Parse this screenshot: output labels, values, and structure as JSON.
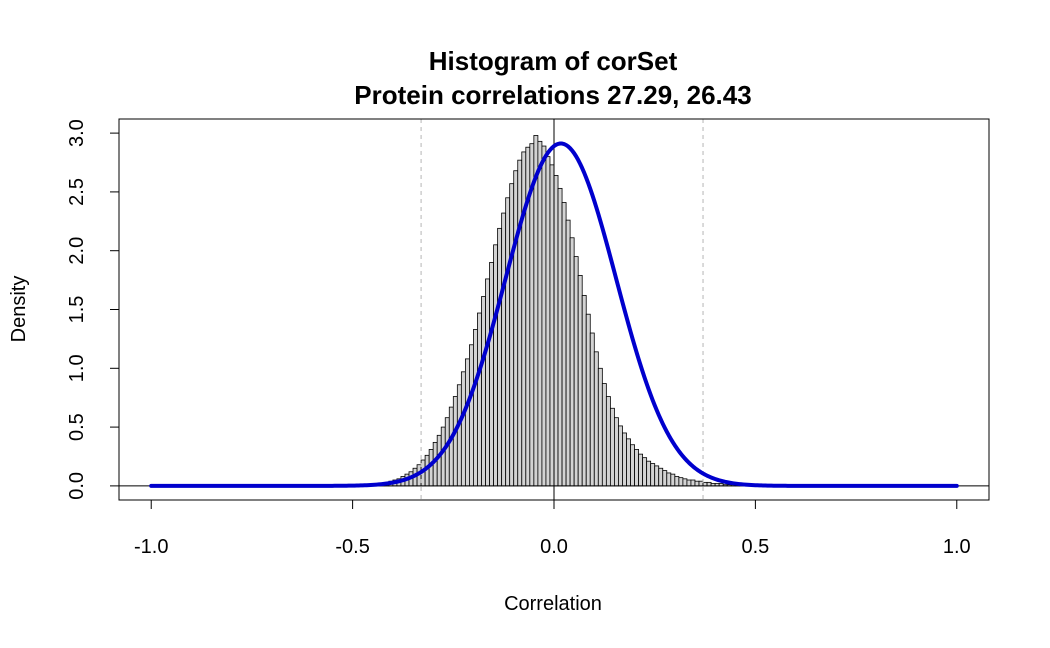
{
  "chart_data": {
    "type": "bar",
    "title": "Histogram of corSet",
    "subtitle": "Protein correlations 27.29, 26.43",
    "xlabel": "Correlation",
    "ylabel": "Density",
    "xlim": [
      -1.08,
      1.08
    ],
    "ylim": [
      -0.12,
      3.12
    ],
    "x_ticks": [
      -1.0,
      -0.5,
      0.0,
      0.5,
      1.0
    ],
    "x_tick_labels": [
      "-1.0",
      "-0.5",
      "0.0",
      "0.5",
      "1.0"
    ],
    "y_ticks": [
      0.0,
      0.5,
      1.0,
      1.5,
      2.0,
      2.5,
      3.0
    ],
    "y_tick_labels": [
      "0.0",
      "0.5",
      "1.0",
      "1.5",
      "2.0",
      "2.5",
      "3.0"
    ],
    "bin_width": 0.01,
    "bins_start": -0.45,
    "bin_values": [
      0.01,
      0.01,
      0.02,
      0.03,
      0.04,
      0.05,
      0.06,
      0.08,
      0.1,
      0.12,
      0.15,
      0.18,
      0.22,
      0.26,
      0.31,
      0.37,
      0.43,
      0.5,
      0.58,
      0.67,
      0.76,
      0.86,
      0.97,
      1.08,
      1.2,
      1.33,
      1.47,
      1.61,
      1.76,
      1.9,
      2.05,
      2.19,
      2.32,
      2.45,
      2.57,
      2.68,
      2.77,
      2.84,
      2.88,
      2.91,
      2.98,
      2.93,
      2.89,
      2.8,
      2.73,
      2.64,
      2.53,
      2.41,
      2.26,
      2.11,
      1.95,
      1.79,
      1.62,
      1.46,
      1.3,
      1.14,
      1.0,
      0.87,
      0.76,
      0.66,
      0.58,
      0.51,
      0.45,
      0.4,
      0.35,
      0.31,
      0.27,
      0.24,
      0.21,
      0.19,
      0.17,
      0.15,
      0.13,
      0.11,
      0.1,
      0.08,
      0.07,
      0.06,
      0.05,
      0.05,
      0.04,
      0.04,
      0.03,
      0.03,
      0.02,
      0.02,
      0.02,
      0.01,
      0.01,
      0.01,
      0.01,
      0.01,
      0.01,
      0.01,
      0.01,
      0.01,
      0.01,
      0.01
    ],
    "normal_curve": {
      "mean": 0.017,
      "sd": 0.137,
      "x_range": [
        -1.0,
        1.0
      ],
      "color": "#0000CD"
    },
    "reference_lines": {
      "solid": [
        0.0
      ],
      "dashed": [
        -0.33,
        0.37
      ]
    },
    "bar_fill": "#D3D3D3",
    "bar_stroke": "#000000",
    "grid": false
  }
}
